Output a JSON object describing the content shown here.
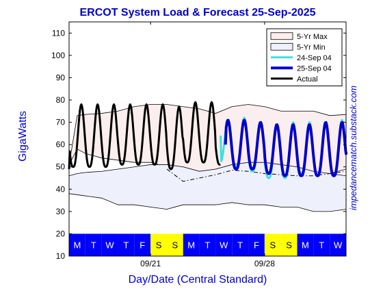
{
  "chart_data": {
    "type": "line",
    "title": "ERCOT System Load & Forecast 25-Sep-2025",
    "xlabel": "Day/Date (Central Standard)",
    "ylabel": "GigaWatts",
    "watermark": "impedancematch.substack.com",
    "ylim": [
      10,
      115
    ],
    "yticks": [
      10,
      20,
      30,
      40,
      50,
      60,
      70,
      80,
      90,
      100,
      110
    ],
    "xlim": [
      0,
      17
    ],
    "xticks": [
      {
        "x": 5,
        "label": "09/21"
      },
      {
        "x": 12,
        "label": "09/28"
      }
    ],
    "grid": false,
    "legend_position": "top-right",
    "legend": [
      {
        "key": "max",
        "label": "5-Yr Max"
      },
      {
        "key": "min",
        "label": "5-Yr Min"
      },
      {
        "key": "f24",
        "label": "24-Sep 04"
      },
      {
        "key": "f25",
        "label": "25-Sep 04"
      },
      {
        "key": "actual",
        "label": "Actual"
      }
    ],
    "colors": {
      "max_fill": "#fbeeee",
      "min_fill": "#eef0fb",
      "f24": "#3fe0e0",
      "f25": "#0000cc",
      "actual": "#000000",
      "weekday": "#0000ff",
      "weekend": "#ffff00",
      "title": "#0000cc"
    },
    "day_strip": [
      {
        "label": "M",
        "weekend": false
      },
      {
        "label": "T",
        "weekend": false
      },
      {
        "label": "W",
        "weekend": false
      },
      {
        "label": "T",
        "weekend": false
      },
      {
        "label": "F",
        "weekend": false
      },
      {
        "label": "S",
        "weekend": true
      },
      {
        "label": "S",
        "weekend": true
      },
      {
        "label": "M",
        "weekend": false
      },
      {
        "label": "T",
        "weekend": false
      },
      {
        "label": "W",
        "weekend": false
      },
      {
        "label": "T",
        "weekend": false
      },
      {
        "label": "F",
        "weekend": false
      },
      {
        "label": "S",
        "weekend": true
      },
      {
        "label": "S",
        "weekend": true
      },
      {
        "label": "M",
        "weekend": false
      },
      {
        "label": "T",
        "weekend": false
      },
      {
        "label": "W",
        "weekend": false
      }
    ],
    "series": [
      {
        "key": "max_upper",
        "x": [
          0,
          0.5,
          1,
          2,
          3,
          4,
          5,
          6,
          7,
          8,
          9,
          10,
          11,
          12,
          13,
          14,
          15,
          16,
          17
        ],
        "values": [
          51,
          73,
          73.5,
          74,
          75,
          77,
          78,
          78,
          77,
          76,
          74,
          77,
          78,
          77,
          75,
          75,
          75,
          73,
          73.5
        ]
      },
      {
        "key": "max_lower",
        "x": [
          0,
          0.5,
          1,
          2,
          3,
          4,
          5,
          6,
          7,
          8,
          9,
          10,
          11,
          12,
          13,
          14,
          15,
          16,
          17
        ],
        "values": [
          51,
          58,
          56,
          54,
          53,
          52,
          52,
          50,
          50,
          48,
          49,
          51,
          50,
          49,
          48,
          47,
          46,
          47,
          49
        ]
      },
      {
        "key": "min_upper",
        "x": [
          0,
          0.5,
          1,
          2,
          3,
          4,
          5,
          6,
          7,
          8,
          9,
          10,
          11,
          12,
          13,
          14,
          15,
          16,
          17
        ],
        "values": [
          46,
          47,
          47.5,
          48,
          49,
          50,
          51,
          51,
          50,
          48,
          49,
          51,
          52,
          52,
          51,
          50,
          48,
          47,
          46
        ]
      },
      {
        "key": "min_lower",
        "x": [
          0,
          0.5,
          1,
          2,
          3,
          4,
          5,
          6,
          7,
          8,
          9,
          10,
          11,
          12,
          13,
          14,
          15,
          16,
          17
        ],
        "values": [
          38,
          37.5,
          37,
          36,
          33,
          33,
          32,
          31,
          33,
          33,
          33,
          34,
          33,
          33,
          32,
          32,
          30,
          30,
          31
        ]
      },
      {
        "key": "dashdot",
        "x": [
          6,
          7,
          8,
          9,
          10,
          11,
          12,
          13,
          14,
          15,
          16,
          17
        ],
        "values": [
          49,
          43.5,
          45,
          46.5,
          48.5,
          48,
          47,
          46.5,
          46,
          46,
          47,
          48
        ]
      },
      {
        "key": "actual",
        "name": "Actual",
        "day_start": 0,
        "days": 9.3,
        "mins": [
          50,
          50,
          50,
          51,
          51,
          51,
          49,
          52,
          52,
          51
        ],
        "maxs": [
          78,
          78,
          78,
          78,
          78,
          78,
          77,
          79,
          79,
          72
        ],
        "start_value": 49
      },
      {
        "key": "f24",
        "name": "24-Sep 04",
        "day_start": 9.3,
        "days": 7.7,
        "mins": [
          52,
          50,
          48,
          45,
          45,
          47,
          46,
          46,
          47
        ],
        "maxs": [
          71,
          72,
          70,
          69,
          70,
          70,
          70,
          71,
          71
        ],
        "start_value": 64
      },
      {
        "key": "f25",
        "name": "25-Sep 04",
        "day_start": 9.6,
        "days": 7.4,
        "mins": [
          49,
          49,
          49,
          47,
          46,
          46,
          46,
          46,
          48
        ],
        "maxs": [
          71,
          71,
          70,
          69,
          69,
          69,
          70,
          70,
          71
        ],
        "start_value": 60
      }
    ]
  }
}
